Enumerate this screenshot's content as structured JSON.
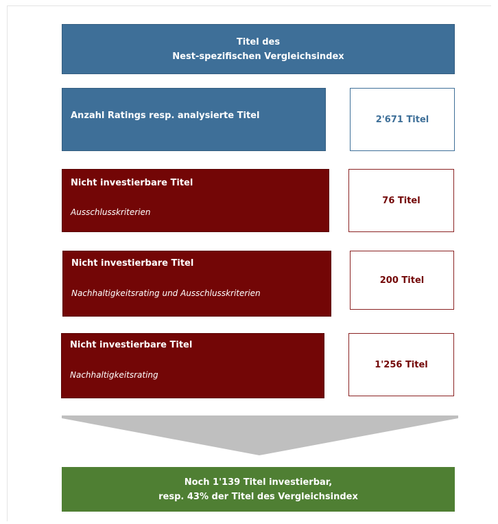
{
  "header": {
    "title_line1": "Titel des",
    "title_line2": "Nest-spezifischen Vergleichsindex"
  },
  "rows": [
    {
      "label": "Anzahl Ratings resp. analysierte Titel",
      "count": "2'671 Titel"
    },
    {
      "label": "Nicht investierbare Titel",
      "sub": "Ausschlusskriterien",
      "count": "76 Titel"
    },
    {
      "label": "Nicht investierbare Titel",
      "sub": "Nachhaltigkeitsrating und Ausschlusskriterien",
      "count": "200 Titel"
    },
    {
      "label": "Nicht investierbare Titel",
      "sub": "Nachhaltigkeitsrating",
      "count": "1'256 Titel"
    }
  ],
  "result": {
    "line1": "Noch 1'139  Titel investierbar,",
    "line2": "resp. 43% der Titel des Vergleichsindex"
  }
}
